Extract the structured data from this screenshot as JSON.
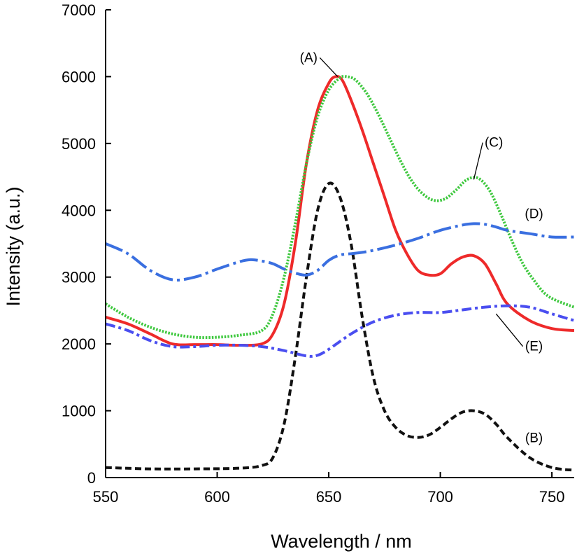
{
  "chart_data": {
    "type": "line",
    "xlabel": "Wavelength / nm",
    "ylabel": "Intensity (a.u.)",
    "xlim": [
      550,
      760
    ],
    "ylim": [
      0,
      7000
    ],
    "xticks": [
      550,
      600,
      650,
      700,
      750
    ],
    "yticks": [
      0,
      1000,
      2000,
      3000,
      4000,
      5000,
      6000,
      7000
    ],
    "grid": false,
    "series": [
      {
        "name": "(A)",
        "color": "#ee2a2a",
        "style": "solid",
        "x": [
          550,
          560,
          570,
          580,
          590,
          600,
          610,
          620,
          625,
          630,
          635,
          640,
          645,
          650,
          653,
          656,
          660,
          665,
          670,
          675,
          680,
          685,
          690,
          695,
          700,
          705,
          710,
          715,
          720,
          725,
          730,
          740,
          750,
          760
        ],
        "y": [
          2400,
          2300,
          2150,
          2000,
          1990,
          1990,
          1980,
          2000,
          2150,
          2600,
          3500,
          4700,
          5500,
          5900,
          6000,
          5950,
          5650,
          5200,
          4700,
          4200,
          3700,
          3350,
          3100,
          3030,
          3050,
          3200,
          3300,
          3320,
          3200,
          2900,
          2600,
          2350,
          2230,
          2200
        ]
      },
      {
        "name": "(B)",
        "color": "#111111",
        "style": "short-dash",
        "x": [
          550,
          570,
          590,
          610,
          620,
          625,
          630,
          635,
          640,
          645,
          650,
          655,
          660,
          665,
          670,
          675,
          680,
          685,
          690,
          695,
          700,
          705,
          710,
          715,
          720,
          725,
          730,
          740,
          750,
          760
        ],
        "y": [
          150,
          130,
          130,
          140,
          180,
          300,
          800,
          1800,
          3000,
          4000,
          4400,
          4200,
          3500,
          2400,
          1500,
          1000,
          750,
          630,
          600,
          640,
          750,
          880,
          980,
          1000,
          950,
          800,
          600,
          300,
          150,
          110
        ]
      },
      {
        "name": "(C)",
        "color": "#3ec83e",
        "style": "dotted",
        "x": [
          550,
          560,
          570,
          580,
          590,
          600,
          610,
          620,
          625,
          630,
          635,
          640,
          645,
          650,
          655,
          658,
          662,
          667,
          672,
          677,
          682,
          687,
          692,
          697,
          702,
          707,
          712,
          717,
          722,
          727,
          732,
          737,
          742,
          747,
          752,
          760
        ],
        "y": [
          2600,
          2400,
          2250,
          2150,
          2100,
          2100,
          2130,
          2200,
          2450,
          3000,
          3800,
          4700,
          5400,
          5800,
          5980,
          6000,
          5950,
          5750,
          5450,
          5100,
          4750,
          4450,
          4250,
          4150,
          4170,
          4300,
          4460,
          4480,
          4300,
          3950,
          3550,
          3200,
          2950,
          2750,
          2650,
          2550
        ]
      },
      {
        "name": "(D)",
        "color": "#3a6fe0",
        "style": "long-dash-dot",
        "x": [
          550,
          560,
          570,
          580,
          590,
          600,
          610,
          615,
          620,
          625,
          630,
          635,
          640,
          645,
          650,
          655,
          660,
          665,
          670,
          680,
          690,
          700,
          710,
          715,
          720,
          725,
          730,
          740,
          750,
          760
        ],
        "y": [
          3500,
          3350,
          3100,
          2960,
          3000,
          3120,
          3230,
          3260,
          3240,
          3200,
          3120,
          3060,
          3030,
          3100,
          3250,
          3330,
          3350,
          3370,
          3400,
          3480,
          3580,
          3700,
          3780,
          3800,
          3790,
          3750,
          3700,
          3650,
          3600,
          3600
        ]
      },
      {
        "name": "(E)",
        "color": "#4a4ef0",
        "style": "dash-dot",
        "x": [
          550,
          560,
          570,
          580,
          590,
          600,
          610,
          620,
          630,
          640,
          645,
          650,
          660,
          670,
          680,
          690,
          700,
          710,
          720,
          730,
          740,
          750,
          760
        ],
        "y": [
          2300,
          2200,
          2050,
          1960,
          1960,
          1980,
          1980,
          1960,
          1900,
          1820,
          1830,
          1920,
          2150,
          2330,
          2430,
          2470,
          2470,
          2510,
          2550,
          2570,
          2550,
          2450,
          2350
        ]
      }
    ],
    "annotations": [
      {
        "text": "(A)",
        "series": "(A)",
        "label_at": [
          641,
          6220
        ],
        "points_to": [
          654,
          6000
        ]
      },
      {
        "text": "(C)",
        "series": "(C)",
        "label_at": [
          724,
          4950
        ],
        "points_to": [
          715,
          4460
        ]
      },
      {
        "text": "(D)",
        "series": "(D)",
        "label_at": [
          742,
          3880
        ],
        "points_to": null
      },
      {
        "text": "(E)",
        "series": "(E)",
        "label_at": [
          742,
          1900
        ],
        "points_to": [
          725,
          2450
        ]
      },
      {
        "text": "(B)",
        "series": "(B)",
        "label_at": [
          742,
          530
        ],
        "points_to": null
      }
    ]
  }
}
